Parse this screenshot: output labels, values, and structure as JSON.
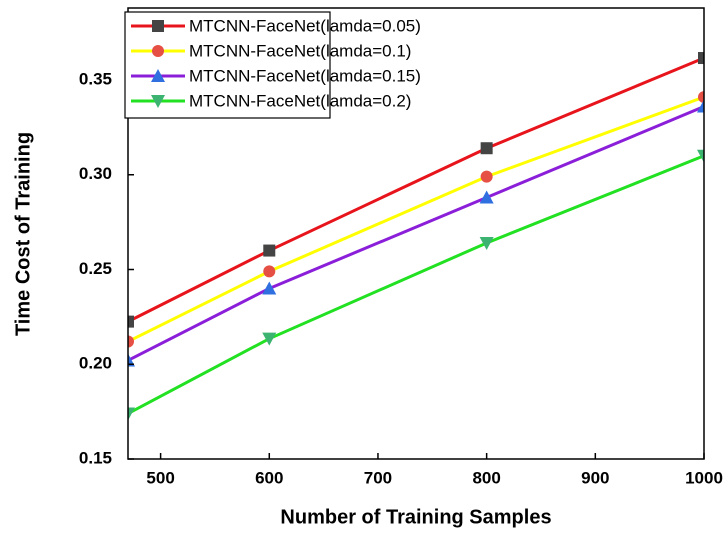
{
  "chart_data": {
    "type": "line",
    "x_label": "Number of Training Samples",
    "y_label": "Time Cost of Training",
    "x": [
      470,
      600,
      800,
      1000
    ],
    "series": [
      {
        "name": "MTCNN-FaceNet(lamda=0.05)",
        "color": "#e8141c",
        "marker": "square",
        "marker_color": "#444444",
        "values": [
          0.2225,
          0.26,
          0.314,
          0.3616
        ]
      },
      {
        "name": "MTCNN-FaceNet(lamda=0.1)",
        "color": "#ffff00",
        "marker": "circle",
        "marker_color": "#e64f44",
        "values": [
          0.212,
          0.249,
          0.299,
          0.341
        ]
      },
      {
        "name": "MTCNN-FaceNet(lamda=0.15)",
        "color": "#8b1fd9",
        "marker": "triangle-up",
        "marker_color": "#2f6fe0",
        "values": [
          0.202,
          0.24,
          0.288,
          0.336
        ]
      },
      {
        "name": "MTCNN-FaceNet(lamda=0.2)",
        "color": "#22e022",
        "marker": "triangle-down",
        "marker_color": "#3cb371",
        "values": [
          0.174,
          0.2135,
          0.264,
          0.31
        ]
      }
    ],
    "xlim": [
      470,
      1000
    ],
    "xticks": [
      500,
      600,
      700,
      800,
      900,
      1000
    ],
    "ylim": [
      0.15,
      0.388
    ],
    "yticks": [
      {
        "value": 0.15,
        "label": "0.15"
      },
      {
        "value": 0.2,
        "label": "0.20"
      },
      {
        "value": 0.25,
        "label": "0.25"
      },
      {
        "value": 0.3,
        "label": "0.30"
      },
      {
        "value": 0.35,
        "label": "0.35"
      }
    ],
    "legend": "upper left",
    "grid": false
  }
}
